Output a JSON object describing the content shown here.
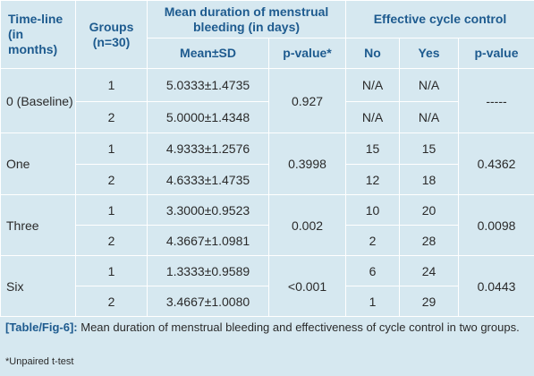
{
  "table": {
    "headers": {
      "timeline": "Time-line (in months)",
      "groups": "Groups (n=30)",
      "mean_duration": "Mean duration of menstrual bleeding (in days)",
      "effective_cycle": "Effective cycle control",
      "mean_sd": "Mean±SD",
      "p_value_star": "p-value*",
      "no": "No",
      "yes": "Yes",
      "p_value": "p-value"
    },
    "rows": [
      {
        "timeline": "0 (Baseline)",
        "group": "1",
        "mean_sd": "5.0333±1.4735",
        "p1": "0.927",
        "no": "N/A",
        "yes": "N/A",
        "p2": "-----"
      },
      {
        "group": "2",
        "mean_sd": "5.0000±1.4348",
        "no": "N/A",
        "yes": "N/A"
      },
      {
        "timeline": "One",
        "group": "1",
        "mean_sd": "4.9333±1.2576",
        "p1": "0.3998",
        "no": "15",
        "yes": "15",
        "p2": "0.4362"
      },
      {
        "group": "2",
        "mean_sd": "4.6333±1.4735",
        "no": "12",
        "yes": "18"
      },
      {
        "timeline": "Three",
        "group": "1",
        "mean_sd": "3.3000±0.9523",
        "p1": "0.002",
        "no": "10",
        "yes": "20",
        "p2": "0.0098"
      },
      {
        "group": "2",
        "mean_sd": "4.3667±1.0981",
        "no": "2",
        "yes": "28"
      },
      {
        "timeline": "Six",
        "group": "1",
        "mean_sd": "1.3333±0.9589",
        "p1": "<0.001",
        "no": "6",
        "yes": "24",
        "p2": "0.0443"
      },
      {
        "group": "2",
        "mean_sd": "3.4667±1.0080",
        "no": "1",
        "yes": "29"
      }
    ]
  },
  "caption": {
    "label": "[Table/Fig-6]:",
    "text": " Mean duration of menstrual bleeding and effectiveness of cycle control in two groups."
  },
  "footnote": "*Unpaired t-test"
}
